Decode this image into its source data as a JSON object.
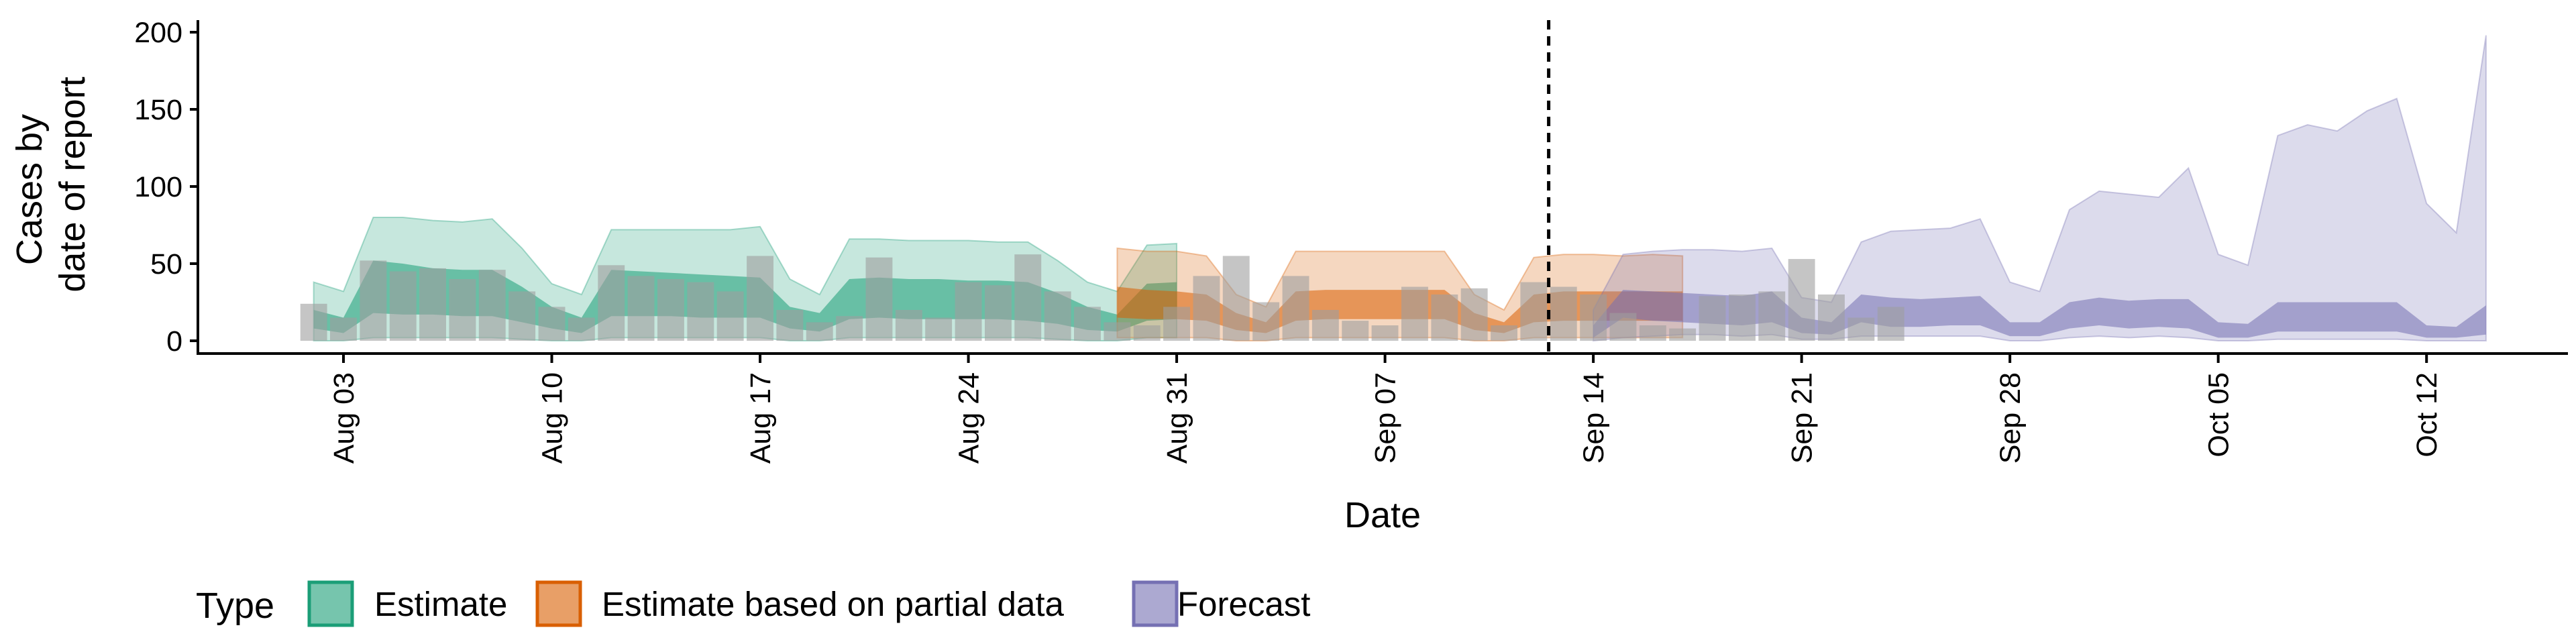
{
  "chart_data": {
    "type": "area",
    "title": "",
    "xlabel": "Date",
    "ylabel_lines": [
      "Cases by",
      "date of report"
    ],
    "ylim": [
      0,
      200
    ],
    "yticks": [
      0,
      50,
      100,
      150,
      200
    ],
    "x_ticks": [
      "Aug 03",
      "Aug 10",
      "Aug 17",
      "Aug 24",
      "Aug 31",
      "Sep 07",
      "Sep 14",
      "Sep 21",
      "Sep 28",
      "Oct 05",
      "Oct 12"
    ],
    "x_tick_days": [
      3,
      10,
      17,
      24,
      31,
      38,
      45,
      52,
      59,
      66,
      73
    ],
    "forecast_date_day": 43.5,
    "legend": {
      "title": "Type",
      "placement": "bottom-left",
      "items": [
        "Estimate",
        "Estimate based on partial data",
        "Forecast"
      ]
    },
    "colors": {
      "Estimate": "#1b9e77",
      "Estimate based on partial data": "#d95f02",
      "Forecast": "#7570b3",
      "bars": "#9e9e9e",
      "dashed": "#000000"
    },
    "reported_cases": {
      "day_start": 2,
      "values": [
        24,
        15,
        52,
        45,
        47,
        40,
        46,
        32,
        22,
        15,
        49,
        42,
        40,
        38,
        32,
        55,
        20,
        12,
        16,
        54,
        20,
        15,
        38,
        36,
        56,
        32,
        22,
        12,
        10,
        22,
        42,
        55,
        25,
        42,
        20,
        13,
        10,
        35,
        30,
        34,
        10,
        38,
        35,
        30,
        18,
        10,
        8,
        29,
        30,
        32,
        53,
        30,
        15,
        22
      ]
    },
    "series": [
      {
        "name": "Estimate",
        "day_start": 2,
        "outer_upper": [
          38,
          32,
          80,
          80,
          78,
          77,
          79,
          60,
          37,
          30,
          72,
          72,
          72,
          72,
          72,
          74,
          40,
          30,
          66,
          66,
          65,
          65,
          65,
          64,
          64,
          52,
          38,
          32,
          62,
          63
        ],
        "inner_upper": [
          20,
          15,
          52,
          50,
          47,
          46,
          46,
          35,
          22,
          15,
          46,
          45,
          44,
          43,
          42,
          41,
          22,
          18,
          40,
          41,
          40,
          40,
          39,
          39,
          38,
          31,
          22,
          17,
          37,
          38
        ],
        "inner_lower": [
          8,
          5,
          18,
          17,
          17,
          16,
          16,
          12,
          8,
          5,
          16,
          16,
          16,
          15,
          15,
          15,
          8,
          6,
          14,
          15,
          14,
          14,
          14,
          14,
          13,
          11,
          7,
          6,
          13,
          14
        ],
        "outer_lower": [
          0,
          0,
          2,
          2,
          2,
          2,
          2,
          1,
          0,
          0,
          2,
          2,
          2,
          2,
          2,
          2,
          0,
          0,
          2,
          2,
          2,
          2,
          2,
          2,
          2,
          1,
          0,
          0,
          2,
          2
        ]
      },
      {
        "name": "Estimate based on partial data",
        "day_start": 29,
        "outer_upper": [
          60,
          58,
          58,
          55,
          30,
          22,
          58,
          58,
          58,
          58,
          58,
          58,
          30,
          20,
          54,
          56,
          56,
          55,
          56,
          55
        ],
        "inner_upper": [
          35,
          33,
          32,
          30,
          18,
          12,
          32,
          33,
          33,
          33,
          33,
          33,
          18,
          12,
          30,
          32,
          32,
          32,
          32,
          32
        ],
        "inner_lower": [
          15,
          14,
          14,
          13,
          7,
          5,
          13,
          14,
          14,
          14,
          14,
          14,
          7,
          5,
          12,
          13,
          13,
          13,
          13,
          13
        ],
        "outer_lower": [
          2,
          2,
          2,
          2,
          0,
          0,
          2,
          2,
          2,
          2,
          2,
          2,
          0,
          0,
          2,
          2,
          2,
          2,
          2,
          2
        ]
      },
      {
        "name": "Forecast",
        "day_start": 45,
        "outer_upper": [
          20,
          56,
          58,
          59,
          59,
          58,
          60,
          28,
          25,
          64,
          71,
          72,
          73,
          79,
          38,
          32,
          85,
          97,
          95,
          93,
          112,
          56,
          49,
          133,
          140,
          136,
          149,
          157,
          89,
          70,
          198
        ],
        "inner_upper": [
          10,
          33,
          32,
          31,
          30,
          29,
          32,
          15,
          12,
          30,
          28,
          27,
          28,
          29,
          12,
          12,
          25,
          28,
          26,
          27,
          27,
          12,
          11,
          25,
          25,
          25,
          25,
          25,
          10,
          9,
          23
        ],
        "inner_lower": [
          2,
          15,
          13,
          12,
          11,
          10,
          12,
          5,
          4,
          12,
          9,
          9,
          10,
          10,
          3,
          3,
          8,
          10,
          8,
          9,
          8,
          2,
          2,
          6,
          6,
          6,
          6,
          6,
          2,
          2,
          4
        ],
        "outer_lower": [
          0,
          2,
          3,
          4,
          4,
          3,
          4,
          1,
          1,
          3,
          3,
          3,
          3,
          3,
          0,
          0,
          2,
          3,
          2,
          3,
          2,
          0,
          0,
          1,
          1,
          1,
          1,
          1,
          0,
          0,
          0
        ]
      }
    ]
  }
}
